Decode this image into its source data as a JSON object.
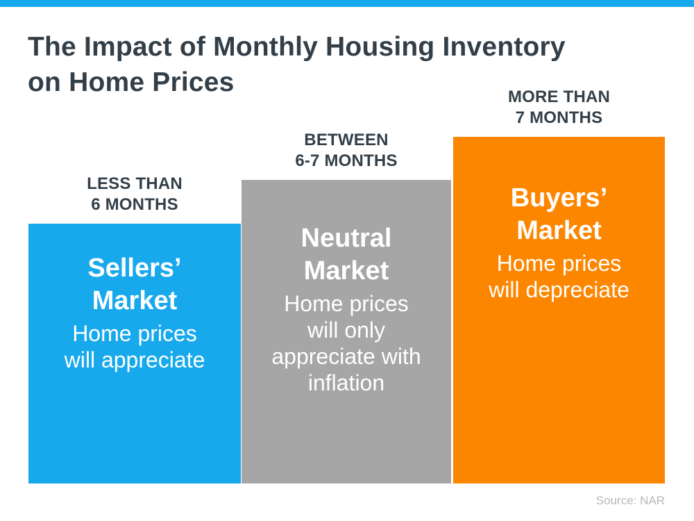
{
  "page": {
    "background": "#FFFFFF",
    "top_bar_color": "#17A9EC",
    "title_lines": [
      "The Impact of Monthly Housing Inventory",
      "on Home Prices"
    ],
    "title_color": "#333F48",
    "label_color": "#333F48",
    "source_note": "Source: NAR",
    "source_color": "#B5B8BB"
  },
  "chart_data": {
    "type": "bar",
    "title": "The Impact of Monthly Housing Inventory on Home Prices",
    "categories": [
      "LESS THAN 6 MONTHS",
      "BETWEEN 6-7 MONTHS",
      "MORE THAN 7 MONTHS"
    ],
    "series": [
      {
        "name": "Relative bar height (qualitative, px)",
        "values": [
          374,
          437,
          499
        ]
      }
    ],
    "bar_colors": [
      "#17A9EC",
      "#A6A6A6",
      "#FC8600"
    ],
    "annotations": [
      "Sellers’ Market — Home prices will appreciate",
      "Neutral Market — Home prices will only appreciate with inflation",
      "Buyers’ Market — Home prices will depreciate"
    ],
    "xlabel": "",
    "ylabel": "",
    "value_axis": "none (qualitative infographic, bars share a common baseline)",
    "grid": false,
    "legend": "none",
    "source": "Source: NAR"
  },
  "bars": [
    {
      "category_lines": [
        "LESS THAN",
        "6 MONTHS"
      ],
      "heading_lines": [
        "Sellers’",
        "Market"
      ],
      "body_lines": [
        "Home prices",
        "will appreciate"
      ],
      "color": "#17A9EC",
      "text_color": "#FFFFFF"
    },
    {
      "category_lines": [
        "BETWEEN",
        "6-7 MONTHS"
      ],
      "heading_lines": [
        "Neutral",
        "Market"
      ],
      "body_lines": [
        "Home prices",
        "will only",
        "appreciate with",
        "inflation"
      ],
      "color": "#A6A6A6",
      "text_color": "#FFFFFF"
    },
    {
      "category_lines": [
        "MORE THAN",
        "7 MONTHS"
      ],
      "heading_lines": [
        "Buyers’",
        "Market"
      ],
      "body_lines": [
        "Home prices",
        "will depreciate"
      ],
      "color": "#FC8600",
      "text_color": "#FFFFFF"
    }
  ]
}
